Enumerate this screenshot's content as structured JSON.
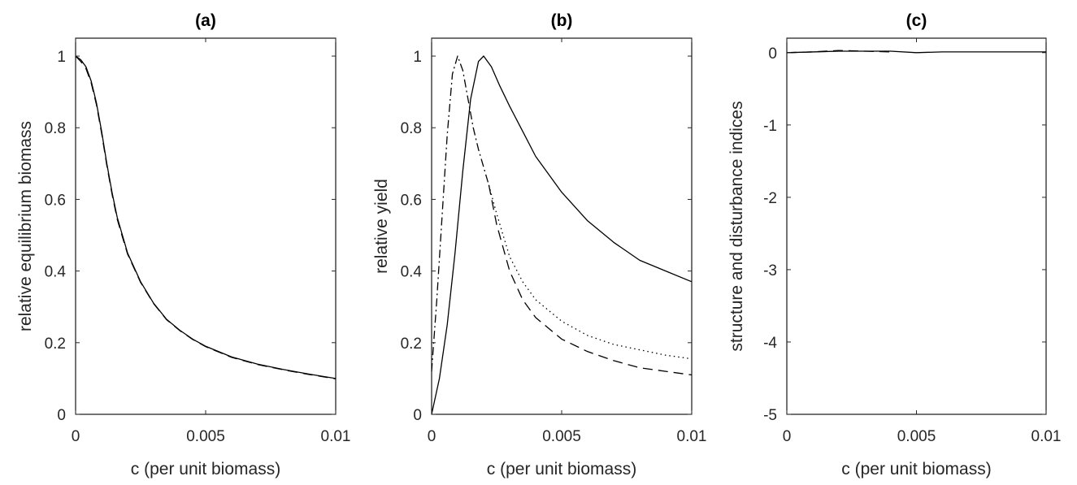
{
  "chart_data": [
    {
      "panel": "a",
      "type": "line",
      "title": "(a)",
      "xlabel": "c (per unit biomass)",
      "ylabel": "relative equilibrium biomass",
      "xlim": [
        0,
        0.01
      ],
      "ylim": [
        0,
        1.05
      ],
      "xticks": [
        0,
        0.005,
        0.01
      ],
      "xtick_labels": [
        "0",
        "0.005",
        "0.01"
      ],
      "yticks": [
        0,
        0.2,
        0.4,
        0.6,
        0.8,
        1
      ],
      "ytick_labels": [
        "0",
        "0.2",
        "0.4",
        "0.6",
        "0.8",
        "1"
      ],
      "grid": false,
      "series": [
        {
          "style": "solid",
          "x": [
            0,
            0.0002,
            0.0004,
            0.0006,
            0.0008,
            0.001,
            0.0012,
            0.0014,
            0.0016,
            0.0018,
            0.002,
            0.0025,
            0.003,
            0.0035,
            0.004,
            0.0045,
            0.005,
            0.006,
            0.007,
            0.008,
            0.009,
            0.01
          ],
          "y": [
            1.0,
            0.99,
            0.97,
            0.93,
            0.87,
            0.79,
            0.7,
            0.62,
            0.55,
            0.5,
            0.45,
            0.37,
            0.31,
            0.265,
            0.235,
            0.21,
            0.19,
            0.16,
            0.14,
            0.125,
            0.112,
            0.1
          ]
        },
        {
          "style": "dashed",
          "x": [
            0,
            0.0002,
            0.0004,
            0.0006,
            0.0008,
            0.001,
            0.0012,
            0.0014,
            0.0016,
            0.0018,
            0.002,
            0.0025,
            0.003,
            0.0035,
            0.004,
            0.0045,
            0.005,
            0.006,
            0.007,
            0.008,
            0.009,
            0.01
          ],
          "y": [
            1.0,
            0.985,
            0.965,
            0.925,
            0.865,
            0.785,
            0.695,
            0.615,
            0.545,
            0.495,
            0.447,
            0.368,
            0.309,
            0.264,
            0.234,
            0.209,
            0.189,
            0.159,
            0.139,
            0.124,
            0.111,
            0.099
          ]
        }
      ]
    },
    {
      "panel": "b",
      "type": "line",
      "title": "(b)",
      "xlabel": "c (per unit biomass)",
      "ylabel": "relative yield",
      "xlim": [
        0,
        0.01
      ],
      "ylim": [
        0,
        1.05
      ],
      "xticks": [
        0,
        0.005,
        0.01
      ],
      "xtick_labels": [
        "0",
        "0.005",
        "0.01"
      ],
      "yticks": [
        0,
        0.2,
        0.4,
        0.6,
        0.8,
        1
      ],
      "ytick_labels": [
        "0",
        "0.2",
        "0.4",
        "0.6",
        "0.8",
        "1"
      ],
      "grid": false,
      "series": [
        {
          "style": "solid",
          "x": [
            0,
            0.0003,
            0.0006,
            0.0009,
            0.0012,
            0.0015,
            0.0018,
            0.002,
            0.0023,
            0.0026,
            0.003,
            0.0035,
            0.004,
            0.005,
            0.006,
            0.007,
            0.008,
            0.009,
            0.01
          ],
          "y": [
            0,
            0.1,
            0.25,
            0.45,
            0.68,
            0.88,
            0.985,
            1.0,
            0.97,
            0.92,
            0.86,
            0.79,
            0.72,
            0.62,
            0.54,
            0.48,
            0.43,
            0.4,
            0.37
          ]
        },
        {
          "style": "dashdot",
          "x": [
            0,
            0.0002,
            0.0004,
            0.0006,
            0.0008,
            0.001,
            0.0012,
            0.0014,
            0.0016,
            0.0018,
            0.002,
            0.0022
          ],
          "y": [
            0.12,
            0.32,
            0.55,
            0.78,
            0.95,
            1.0,
            0.96,
            0.88,
            0.8,
            0.74,
            0.69,
            0.64
          ]
        },
        {
          "style": "dotted",
          "x": [
            0.0022,
            0.0025,
            0.003,
            0.0035,
            0.004,
            0.005,
            0.006,
            0.007,
            0.008,
            0.009,
            0.01
          ],
          "y": [
            0.64,
            0.56,
            0.44,
            0.37,
            0.32,
            0.26,
            0.22,
            0.195,
            0.18,
            0.165,
            0.155
          ]
        },
        {
          "style": "dashed",
          "x": [
            0.0022,
            0.0025,
            0.003,
            0.0035,
            0.004,
            0.005,
            0.006,
            0.007,
            0.008,
            0.009,
            0.01
          ],
          "y": [
            0.64,
            0.53,
            0.4,
            0.32,
            0.27,
            0.21,
            0.175,
            0.15,
            0.13,
            0.12,
            0.11
          ]
        }
      ]
    },
    {
      "panel": "c",
      "type": "line",
      "title": "(c)",
      "xlabel": "c (per unit biomass)",
      "ylabel": "structure and disturbance indices",
      "xlim": [
        0,
        0.01
      ],
      "ylim": [
        -5,
        0.2
      ],
      "xticks": [
        0,
        0.005,
        0.01
      ],
      "xtick_labels": [
        "0",
        "0.005",
        "0.01"
      ],
      "yticks": [
        0,
        -1,
        -2,
        -3,
        -4,
        -5
      ],
      "ytick_labels": [
        "0",
        "-1",
        "-2",
        "-3",
        "-4",
        "-5"
      ],
      "grid": false,
      "series": [
        {
          "style": "solid",
          "x": [
            0,
            0.002,
            0.004,
            0.005,
            0.006,
            0.008,
            0.01
          ],
          "y": [
            0,
            0.02,
            0.02,
            0.0,
            0.01,
            0.01,
            0.01
          ]
        },
        {
          "style": "dashed",
          "x": [
            0,
            0.001,
            0.002,
            0.003,
            0.004
          ],
          "y": [
            0,
            0.01,
            0.03,
            0.02,
            0.01
          ]
        }
      ]
    }
  ]
}
